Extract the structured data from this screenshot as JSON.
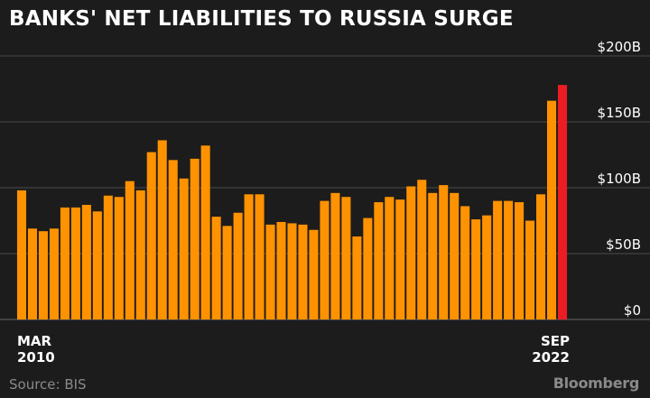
{
  "title": "BANKS' NET LIABILITIES TO RUSSIA SURGE",
  "source": "Source: BIS",
  "brand": "Bloomberg",
  "colors": {
    "background": "#1c1c1c",
    "bar": "#ff9200",
    "highlight": "#ec1c24",
    "grid": "#5a5a5a",
    "text": "#ffffff",
    "muted": "#8a8a8a"
  },
  "chart_data": {
    "type": "bar",
    "title": "BANKS' NET LIABILITIES TO RUSSIA SURGE",
    "xlabel": "",
    "ylabel": "",
    "ylim": [
      0,
      200
    ],
    "y_ticks": [
      {
        "value": 0,
        "label": "$0"
      },
      {
        "value": 50,
        "label": "$50B"
      },
      {
        "value": 100,
        "label": "$100B"
      },
      {
        "value": 150,
        "label": "$150B"
      },
      {
        "value": 200,
        "label": "$200B"
      }
    ],
    "x_start_label": [
      "MAR",
      "2010"
    ],
    "x_end_label": [
      "SEP",
      "2022"
    ],
    "grid": true,
    "highlight_last": true,
    "values": [
      98,
      69,
      67,
      69,
      85,
      85,
      87,
      82,
      94,
      93,
      105,
      98,
      127,
      136,
      121,
      107,
      122,
      132,
      78,
      71,
      81,
      95,
      95,
      72,
      74,
      73,
      72,
      68,
      90,
      96,
      93,
      63,
      77,
      89,
      93,
      91,
      101,
      106,
      96,
      102,
      96,
      86,
      76,
      79,
      90,
      90,
      89,
      75,
      95,
      166,
      178
    ]
  }
}
